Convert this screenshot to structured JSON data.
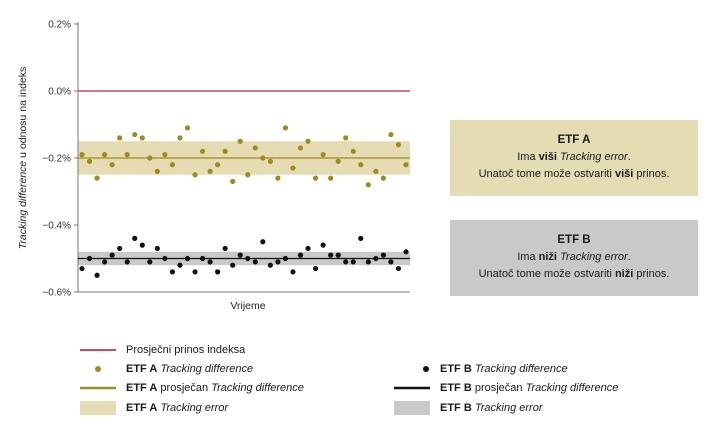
{
  "chart_data": {
    "type": "scatter",
    "title": "",
    "xlabel": "Vrijeme",
    "ylabel_parts": [
      "Tracking difference",
      " u odnosu na indeks"
    ],
    "ylim": [
      -0.6,
      0.2
    ],
    "yticks": [
      "0.2%",
      "0.0%",
      "−0.2%",
      "−0.4%",
      "−0.6%"
    ],
    "ytick_values": [
      0.2,
      0.0,
      -0.2,
      -0.4,
      -0.6
    ],
    "index_return": 0.0,
    "etf_a": {
      "mean": -0.2,
      "band": [
        -0.25,
        -0.15
      ],
      "color": "#a08a1c",
      "band_color": "#e6dcb4",
      "values": [
        -0.19,
        -0.21,
        -0.26,
        -0.19,
        -0.22,
        -0.14,
        -0.19,
        -0.13,
        -0.14,
        -0.2,
        -0.24,
        -0.19,
        -0.22,
        -0.14,
        -0.11,
        -0.25,
        -0.18,
        -0.24,
        -0.22,
        -0.18,
        -0.27,
        -0.15,
        -0.25,
        -0.17,
        -0.2,
        -0.21,
        -0.26,
        -0.11,
        -0.23,
        -0.17,
        -0.15,
        -0.26,
        -0.19,
        -0.26,
        -0.21,
        -0.14,
        -0.18,
        -0.22,
        -0.28,
        -0.24,
        -0.26,
        -0.13,
        -0.16,
        -0.22
      ]
    },
    "etf_b": {
      "mean": -0.5,
      "band": [
        -0.52,
        -0.48
      ],
      "color": "#111111",
      "band_color": "#c9c9c9",
      "values": [
        -0.53,
        -0.5,
        -0.55,
        -0.51,
        -0.49,
        -0.47,
        -0.51,
        -0.44,
        -0.46,
        -0.51,
        -0.47,
        -0.5,
        -0.54,
        -0.52,
        -0.5,
        -0.54,
        -0.5,
        -0.51,
        -0.54,
        -0.47,
        -0.52,
        -0.49,
        -0.5,
        -0.51,
        -0.45,
        -0.52,
        -0.51,
        -0.5,
        -0.54,
        -0.49,
        -0.47,
        -0.53,
        -0.46,
        -0.49,
        -0.49,
        -0.51,
        -0.51,
        -0.44,
        -0.51,
        -0.5,
        -0.49,
        -0.51,
        -0.53,
        -0.48
      ]
    },
    "index_color": "#c94a66",
    "grid": false
  },
  "box_a": {
    "title": "ETF A",
    "line1": [
      "Ima ",
      "viši",
      " ",
      "Tracking error",
      "."
    ],
    "line2": [
      "Unatoč tome može ostvariti ",
      "viši",
      " prinos."
    ],
    "bg": "#e6dcb4"
  },
  "box_b": {
    "title": "ETF B",
    "line1": [
      "Ima ",
      "niži",
      " ",
      "Tracking error",
      "."
    ],
    "line2": [
      "Unatoč tome može ostvariti ",
      "niži",
      " prinos."
    ],
    "bg": "#c9c9c9"
  },
  "legend": {
    "index": "Prosječni prinos indeksa",
    "a_td": [
      "ETF A",
      " ",
      "Tracking difference"
    ],
    "a_avg": [
      "ETF A",
      " prosječan ",
      "Tracking difference"
    ],
    "a_te": [
      "ETF A",
      " ",
      "Tracking error"
    ],
    "b_td": [
      "ETF B",
      " ",
      "Tracking difference"
    ],
    "b_avg": [
      "ETF B",
      " prosječan ",
      "Tracking difference"
    ],
    "b_te": [
      "ETF B",
      " ",
      "Tracking error"
    ]
  }
}
